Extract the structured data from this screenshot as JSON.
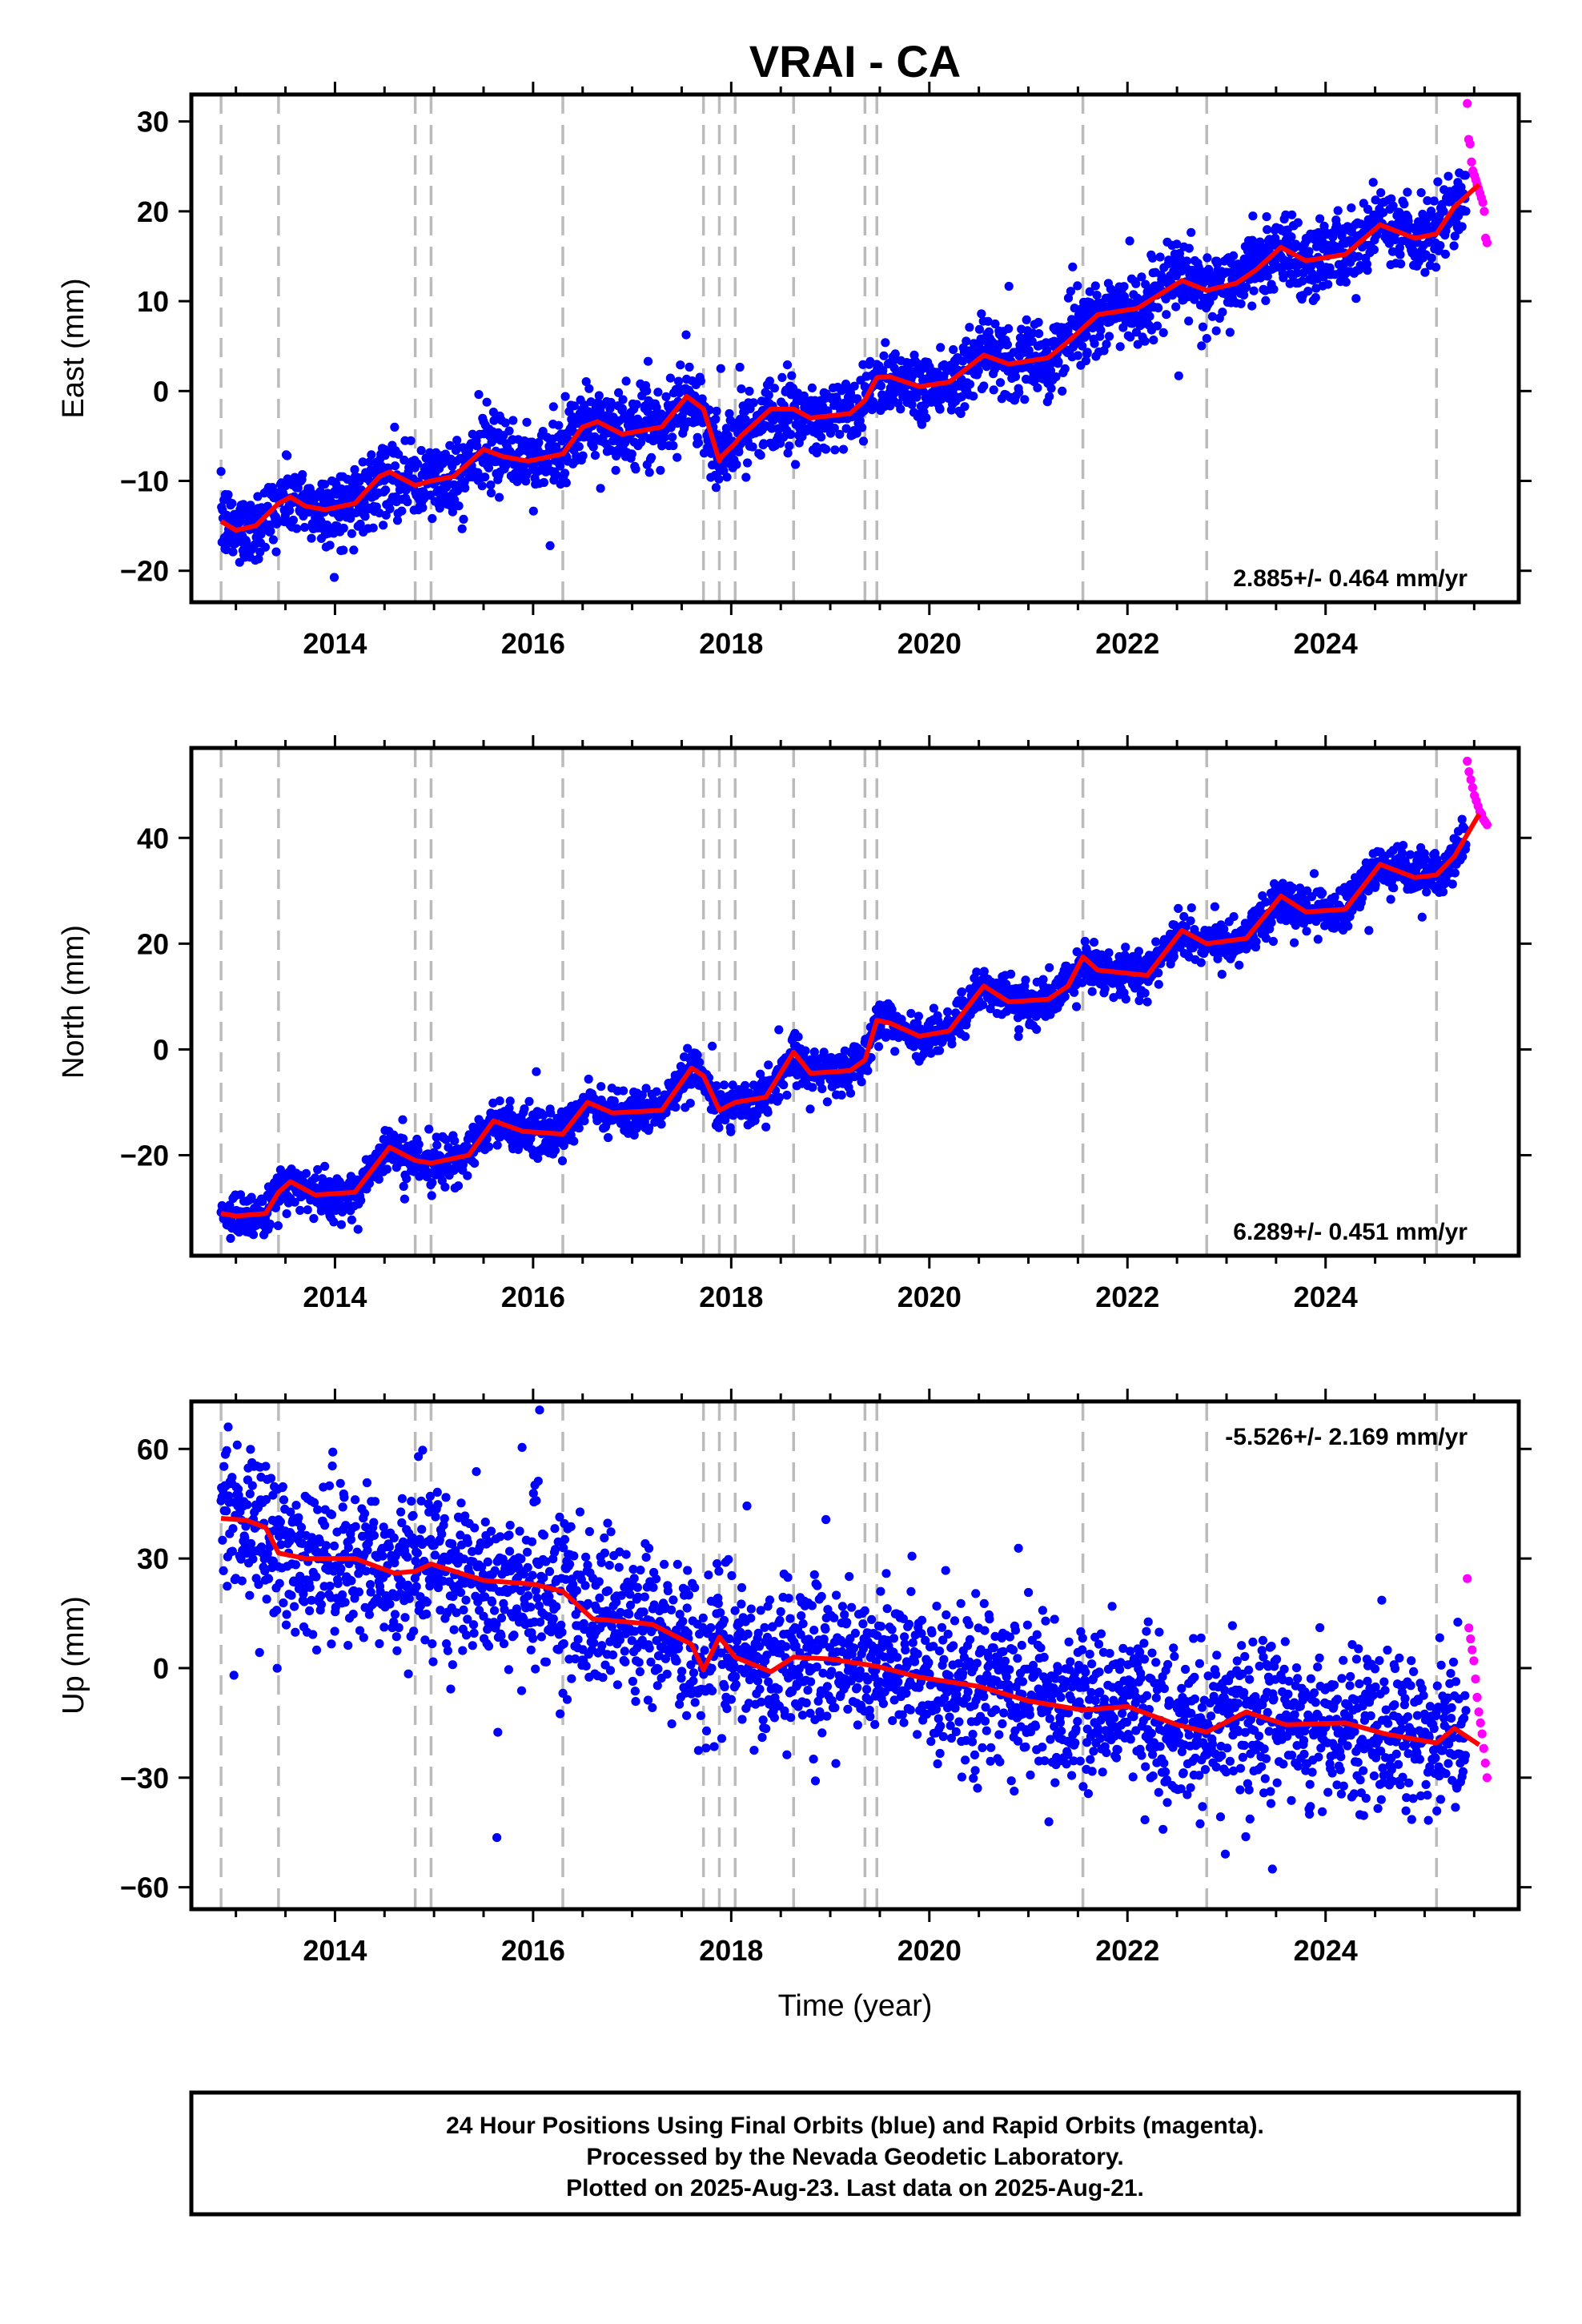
{
  "figure": {
    "title": "VRAI - CA",
    "caption_lines": [
      "24 Hour Positions Using Final Orbits (blue) and Rapid Orbits (magenta).",
      "Processed by the Nevada Geodetic Laboratory.",
      "Plotted on 2025-Aug-23. Last data on 2025-Aug-21."
    ],
    "colors": {
      "final_orbits": "#0000ff",
      "rapid_orbits": "#ff00ff",
      "model_fit": "#ff0000",
      "event_lines": "#bbbbbb",
      "frame": "#000000"
    }
  },
  "chart_data": [
    {
      "type": "scatter",
      "panel": "east",
      "title": "VRAI - CA",
      "xlabel": "",
      "ylabel": "East (mm)",
      "xlim": [
        2012.55,
        2025.95
      ],
      "ylim": [
        -23.5,
        33
      ],
      "xticks": [
        2014,
        2016,
        2018,
        2020,
        2022,
        2024
      ],
      "yticks": [
        -20,
        -10,
        0,
        10,
        20,
        30
      ],
      "grid": false,
      "rate_text": "2.885+/- 0.464 mm/yr",
      "rate_position": "bottom-right",
      "event_lines": [
        2012.85,
        2013.43,
        2014.81,
        2014.97,
        2016.3,
        2017.72,
        2017.88,
        2018.04,
        2018.63,
        2019.35,
        2019.47,
        2021.55,
        2022.8,
        2025.12
      ],
      "model_fit": {
        "x": [
          2012.85,
          2013.0,
          2013.2,
          2013.43,
          2013.55,
          2013.7,
          2013.9,
          2014.2,
          2014.45,
          2014.55,
          2014.81,
          2014.97,
          2015.2,
          2015.5,
          2015.7,
          2015.95,
          2016.3,
          2016.5,
          2016.65,
          2016.9,
          2017.3,
          2017.55,
          2017.72,
          2017.88,
          2017.9,
          2018.04,
          2018.1,
          2018.4,
          2018.63,
          2018.8,
          2019.2,
          2019.35,
          2019.47,
          2019.6,
          2019.9,
          2020.2,
          2020.55,
          2020.8,
          2021.2,
          2021.4,
          2021.55,
          2021.7,
          2022.1,
          2022.55,
          2022.8,
          2023.1,
          2023.3,
          2023.55,
          2023.8,
          2024.2,
          2024.55,
          2024.9,
          2025.12,
          2025.3,
          2025.55
        ],
        "y": [
          -14.5,
          -15.5,
          -15.0,
          -12.5,
          -11.8,
          -12.8,
          -13.2,
          -12.5,
          -9.5,
          -9.0,
          -10.5,
          -10.0,
          -9.5,
          -6.5,
          -7.3,
          -7.8,
          -7.0,
          -4.0,
          -3.4,
          -4.8,
          -4.0,
          -0.6,
          -2.0,
          -7.8,
          -7.3,
          -5.8,
          -5.0,
          -2.0,
          -2.0,
          -3.0,
          -2.5,
          -1.0,
          1.5,
          1.6,
          0.5,
          1.0,
          4.0,
          3.0,
          3.7,
          5.5,
          7.0,
          8.5,
          9.2,
          12.3,
          11.2,
          12.0,
          13.5,
          16.0,
          14.5,
          15.2,
          18.5,
          17.0,
          17.5,
          20.5,
          23.0
        ]
      },
      "series": [
        {
          "name": "Final Orbits",
          "color": "#0000ff",
          "trend": {
            "start_x": 2012.85,
            "start_y": -14.5,
            "rate": 2.885
          },
          "noise": 2.0
        },
        {
          "name": "Rapid Orbits",
          "color": "#ff00ff",
          "x_range": [
            2025.43,
            2025.63
          ],
          "values": [
            32.0,
            28.0,
            27.5,
            25.5,
            24.5,
            24.0,
            23.5,
            23.0,
            22.5,
            22.0,
            21.5,
            21.0,
            20.0,
            17.0,
            16.5
          ]
        }
      ]
    },
    {
      "type": "scatter",
      "panel": "north",
      "xlabel": "",
      "ylabel": "North (mm)",
      "xlim": [
        2012.55,
        2025.95
      ],
      "ylim": [
        -39,
        57
      ],
      "xticks": [
        2014,
        2016,
        2018,
        2020,
        2022,
        2024
      ],
      "yticks": [
        -20,
        0,
        20,
        40
      ],
      "grid": false,
      "rate_text": "6.289+/- 0.451 mm/yr",
      "rate_position": "bottom-right",
      "event_lines": [
        2012.85,
        2013.43,
        2014.81,
        2014.97,
        2016.3,
        2017.72,
        2017.88,
        2018.04,
        2018.63,
        2019.35,
        2019.47,
        2021.55,
        2022.8,
        2025.12
      ],
      "model_fit": {
        "x": [
          2012.85,
          2013.0,
          2013.3,
          2013.43,
          2013.55,
          2013.8,
          2014.2,
          2014.55,
          2014.81,
          2014.97,
          2015.35,
          2015.6,
          2015.9,
          2016.3,
          2016.55,
          2016.8,
          2017.3,
          2017.6,
          2017.72,
          2017.88,
          2018.04,
          2018.35,
          2018.63,
          2018.8,
          2019.2,
          2019.35,
          2019.47,
          2019.6,
          2019.9,
          2020.2,
          2020.55,
          2020.8,
          2021.2,
          2021.4,
          2021.55,
          2021.7,
          2022.2,
          2022.55,
          2022.8,
          2023.2,
          2023.55,
          2023.8,
          2024.2,
          2024.55,
          2024.9,
          2025.12,
          2025.3,
          2025.55
        ],
        "y": [
          -31.0,
          -31.5,
          -31.0,
          -27.0,
          -25.0,
          -27.5,
          -27.0,
          -18.5,
          -21.0,
          -21.5,
          -20.0,
          -13.5,
          -15.5,
          -16.0,
          -10.0,
          -12.0,
          -11.5,
          -3.5,
          -5.0,
          -11.5,
          -10.0,
          -9.0,
          -0.5,
          -4.5,
          -4.0,
          -2.0,
          5.5,
          5.0,
          2.5,
          3.5,
          12.0,
          9.0,
          9.5,
          12.0,
          17.5,
          15.0,
          14.0,
          22.5,
          20.0,
          21.0,
          29.0,
          26.0,
          26.5,
          35.0,
          32.5,
          33.0,
          36.5,
          44.5
        ]
      },
      "series": [
        {
          "name": "Final Orbits",
          "color": "#0000ff",
          "trend": {
            "start_x": 2012.85,
            "start_y": -31.0,
            "rate": 6.289
          },
          "noise": 2.0
        },
        {
          "name": "Rapid Orbits",
          "color": "#ff00ff",
          "x_range": [
            2025.43,
            2025.63
          ],
          "values": [
            54.5,
            52.5,
            51.0,
            49.5,
            48.0,
            47.0,
            46.0,
            45.0,
            44.5,
            43.5,
            43.0,
            42.5
          ]
        }
      ]
    },
    {
      "type": "scatter",
      "panel": "up",
      "xlabel": "Time (year)",
      "ylabel": "Up (mm)",
      "xlim": [
        2012.55,
        2025.95
      ],
      "ylim": [
        -66,
        73
      ],
      "xticks": [
        2014,
        2016,
        2018,
        2020,
        2022,
        2024
      ],
      "yticks": [
        -60,
        -30,
        0,
        30,
        60
      ],
      "grid": false,
      "rate_text": "-5.526+/- 2.169 mm/yr",
      "rate_position": "top-right",
      "event_lines": [
        2012.85,
        2013.43,
        2014.81,
        2014.97,
        2016.3,
        2017.72,
        2017.88,
        2018.04,
        2018.63,
        2019.35,
        2019.47,
        2021.55,
        2022.8,
        2025.12
      ],
      "model_fit": {
        "x": [
          2012.85,
          2013.1,
          2013.3,
          2013.43,
          2013.7,
          2014.2,
          2014.6,
          2014.81,
          2014.97,
          2015.5,
          2016.0,
          2016.3,
          2016.6,
          2017.2,
          2017.6,
          2017.72,
          2017.88,
          2018.04,
          2018.4,
          2018.63,
          2019.0,
          2019.35,
          2019.47,
          2019.9,
          2020.5,
          2021.0,
          2021.55,
          2022.0,
          2022.5,
          2022.8,
          2023.2,
          2023.6,
          2024.2,
          2024.6,
          2025.12,
          2025.3,
          2025.55
        ],
        "y": [
          41.0,
          40.5,
          38.5,
          31.5,
          30.0,
          30.0,
          26.0,
          26.5,
          28.5,
          24.0,
          23.0,
          21.0,
          13.5,
          12.0,
          6.5,
          -0.5,
          8.5,
          3.0,
          -1.0,
          3.0,
          2.5,
          1.0,
          0.5,
          -2.5,
          -5.0,
          -9.0,
          -11.5,
          -10.5,
          -15.5,
          -17.5,
          -12.0,
          -15.5,
          -15.0,
          -18.0,
          -20.5,
          -16.5,
          -21.0
        ]
      },
      "series": [
        {
          "name": "Final Orbits",
          "color": "#0000ff",
          "trend": {
            "start_x": 2012.85,
            "start_y": 39.0,
            "rate": -5.526
          },
          "noise": 10.5
        },
        {
          "name": "Rapid Orbits",
          "color": "#ff00ff",
          "x_range": [
            2025.43,
            2025.63
          ],
          "values": [
            24.5,
            11.0,
            8.0,
            5.0,
            2.0,
            -3.0,
            -8.0,
            -12.0,
            -15.0,
            -18.0,
            -22.0,
            -26.0,
            -30.0
          ]
        }
      ]
    }
  ]
}
